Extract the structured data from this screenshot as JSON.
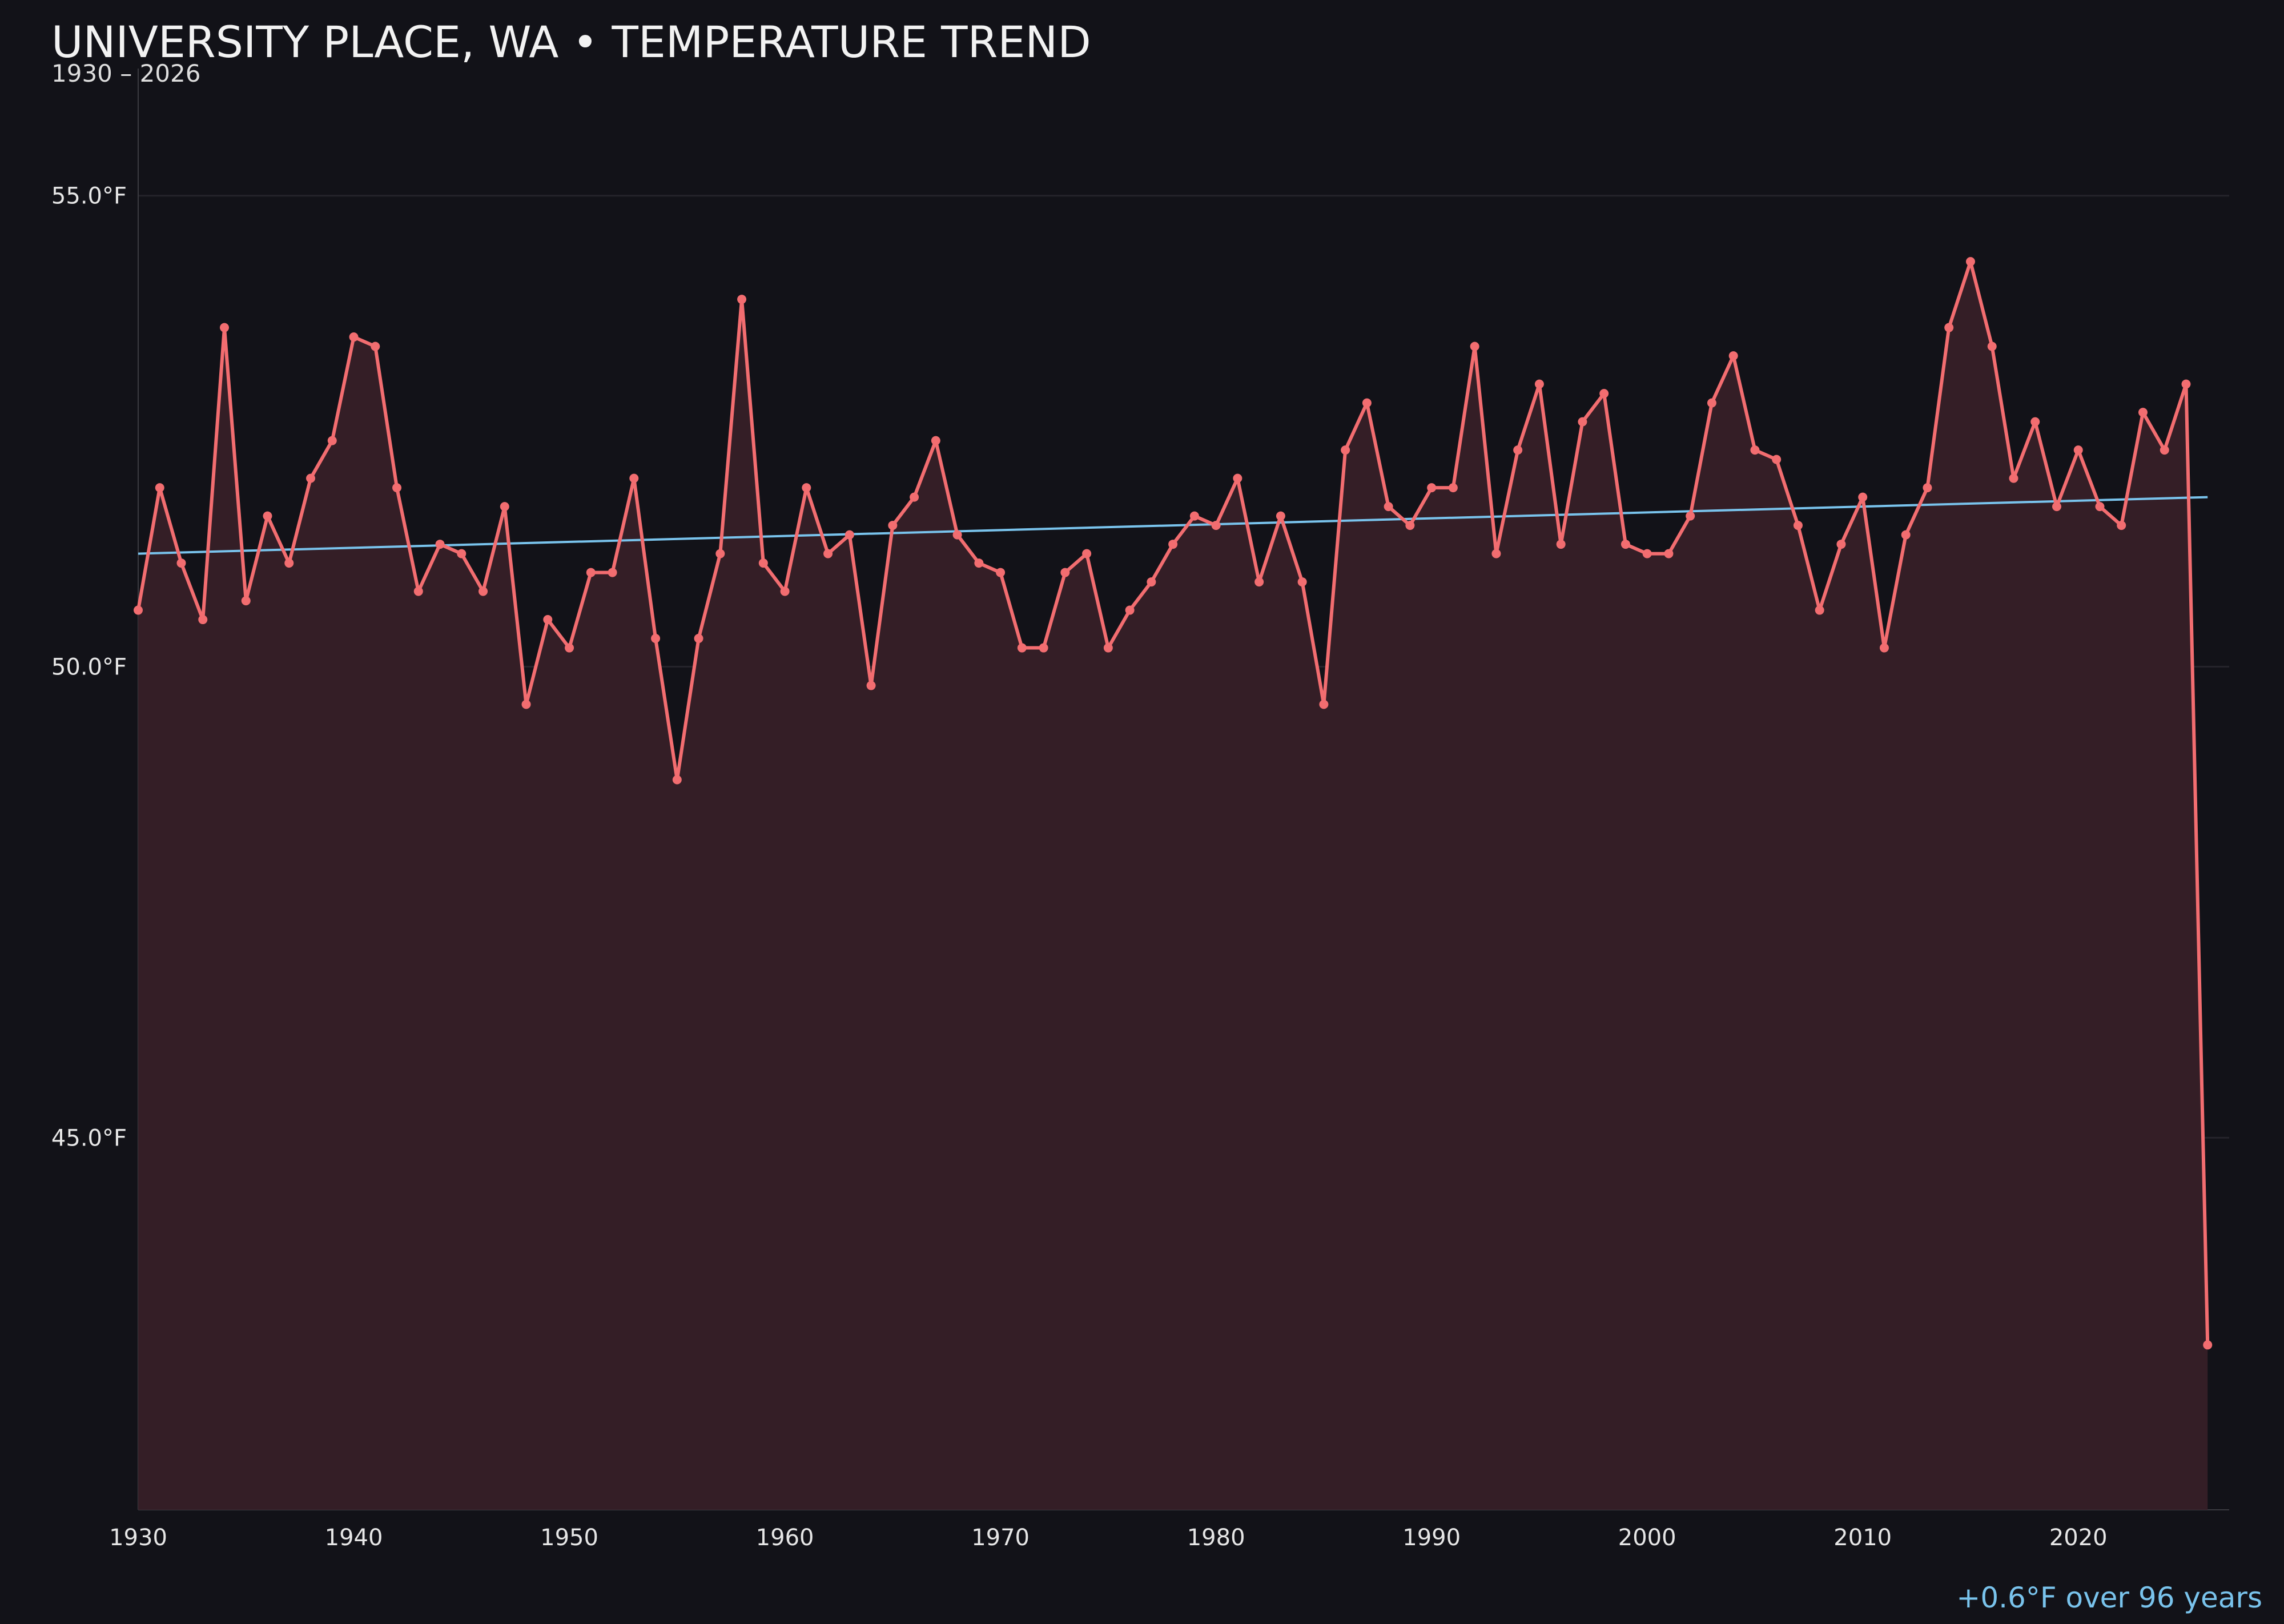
{
  "title": "UNIVERSITY PLACE, WA • TEMPERATURE TREND",
  "subtitle": "1930 – 2026",
  "trend_note": "+0.6°F over 96 years",
  "colors": {
    "background": "#121218",
    "line": "#f26d70",
    "area": "#341e26",
    "trend": "#79c3ec",
    "grid": "#24232a",
    "axis": "#3a3a40"
  },
  "chart_data": {
    "type": "line",
    "title": "UNIVERSITY PLACE, WA • TEMPERATURE TREND",
    "subtitle": "1930 – 2026",
    "xlabel": "",
    "ylabel": "",
    "x_ticks": [
      1930,
      1940,
      1950,
      1960,
      1970,
      1980,
      1990,
      2000,
      2010,
      2020
    ],
    "y_ticks": [
      "45.0°F",
      "50.0°F",
      "55.0°F"
    ],
    "y_tick_values": [
      45,
      50,
      55
    ],
    "ylim": [
      41.05,
      56.35
    ],
    "xlim": [
      1930,
      2027
    ],
    "grid": "horizontal",
    "series": [
      {
        "x": [
          1930,
          1931,
          1932,
          1933,
          1934,
          1935,
          1936,
          1937,
          1938,
          1939,
          1940,
          1941,
          1942,
          1943,
          1944,
          1945,
          1946,
          1947,
          1948,
          1949,
          1950,
          1951,
          1952,
          1953,
          1954,
          1955,
          1956,
          1957,
          1958,
          1959,
          1960,
          1961,
          1962,
          1963,
          1964,
          1965,
          1966,
          1967,
          1968,
          1969,
          1970,
          1971,
          1972,
          1973,
          1974,
          1975,
          1976,
          1977,
          1978,
          1979,
          1980,
          1981,
          1982,
          1983,
          1984,
          1985,
          1986,
          1987,
          1988,
          1989,
          1990,
          1991,
          1992,
          1993,
          1994,
          1995,
          1996,
          1997,
          1998,
          1999,
          2000,
          2001,
          2002,
          2003,
          2004,
          2005,
          2006,
          2007,
          2008,
          2009,
          2010,
          2011,
          2012,
          2013,
          2014,
          2015,
          2016,
          2017,
          2018,
          2019,
          2020,
          2021,
          2022,
          2023,
          2024,
          2025,
          2026
        ],
        "values": [
          50.6,
          51.9,
          51.1,
          50.5,
          53.6,
          50.7,
          51.6,
          51.1,
          52.0,
          52.4,
          53.5,
          53.4,
          51.9,
          50.8,
          51.3,
          51.2,
          50.8,
          51.7,
          49.6,
          50.5,
          50.2,
          51.0,
          51.0,
          52.0,
          50.3,
          48.8,
          50.3,
          51.2,
          53.9,
          51.1,
          50.8,
          51.9,
          51.2,
          51.4,
          49.8,
          51.5,
          51.8,
          52.4,
          51.4,
          51.1,
          51.0,
          50.2,
          50.2,
          51.0,
          51.2,
          50.2,
          50.6,
          50.9,
          51.3,
          51.6,
          51.5,
          52.0,
          50.9,
          51.6,
          50.9,
          49.6,
          52.3,
          52.8,
          51.7,
          51.5,
          51.9,
          51.9,
          53.4,
          51.2,
          52.3,
          53.0,
          51.3,
          52.6,
          52.9,
          51.3,
          51.2,
          51.2,
          51.6,
          52.8,
          53.3,
          52.3,
          52.2,
          51.5,
          50.6,
          51.3,
          51.8,
          50.2,
          51.4,
          51.9,
          53.6,
          54.3,
          53.4,
          52.0,
          52.6,
          51.7,
          52.3,
          51.7,
          51.5,
          52.7,
          52.3,
          53.0,
          42.8
        ]
      }
    ],
    "trend": {
      "x": [
        1930,
        2026
      ],
      "y": [
        51.2,
        51.8
      ]
    }
  }
}
